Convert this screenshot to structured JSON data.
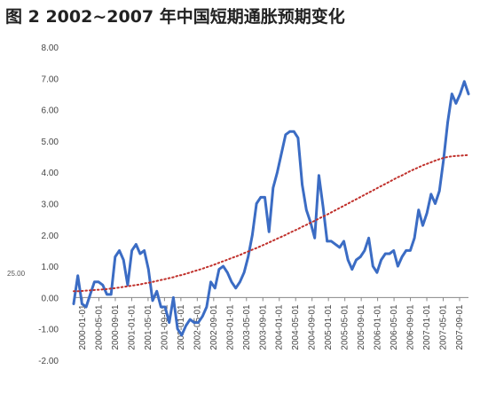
{
  "page": {
    "title": "图 2 2002~2007 年中国短期通胀预期变化",
    "stray_label": "25.00"
  },
  "chart_data": {
    "type": "line",
    "title": "图 2 2002~2007 年中国短期通胀预期变化",
    "xlabel": "",
    "ylabel": "",
    "ylim": [
      -2,
      8
    ],
    "y_ticks": [
      "8.00",
      "7.00",
      "6.00",
      "5.00",
      "4.00",
      "3.00",
      "2.00",
      "1.00",
      "0.00",
      "-1.00",
      "-2.00"
    ],
    "x_tick_labels": [
      "2000-01-01",
      "2000-05-01",
      "2000-09-01",
      "2001-01-01",
      "2001-05-01",
      "2001-09-01",
      "2002-01-01",
      "2002-05-01",
      "2002-09-01",
      "2003-01-01",
      "2003-05-01",
      "2003-09-01",
      "2004-01-01",
      "2004-05-01",
      "2004-09-01",
      "2005-01-01",
      "2005-05-01",
      "2005-09-01",
      "2006-01-01",
      "2006-05-01",
      "2006-09-01",
      "2007-01-01",
      "2007-05-01",
      "2007-09-01"
    ],
    "grid": false,
    "series": [
      {
        "style": "solid",
        "color": "#3b6cc4",
        "values": [
          -0.2,
          0.7,
          -0.2,
          -0.3,
          0.1,
          0.5,
          0.5,
          0.4,
          0.1,
          0.1,
          1.3,
          1.5,
          1.2,
          0.4,
          1.5,
          1.7,
          1.4,
          1.5,
          0.9,
          -0.1,
          0.2,
          -0.3,
          -0.3,
          -0.8,
          0.0,
          -1.0,
          -1.2,
          -0.9,
          -0.7,
          -0.8,
          -0.8,
          -0.6,
          -0.3,
          0.5,
          0.3,
          0.9,
          1.0,
          0.8,
          0.5,
          0.3,
          0.5,
          0.8,
          1.3,
          2.0,
          3.0,
          3.2,
          3.2,
          2.1,
          3.5,
          4.0,
          4.6,
          5.2,
          5.3,
          5.3,
          5.1,
          3.6,
          2.8,
          2.4,
          1.9,
          3.9,
          2.9,
          1.8,
          1.8,
          1.7,
          1.6,
          1.8,
          1.2,
          0.9,
          1.2,
          1.3,
          1.5,
          1.9,
          1.0,
          0.8,
          1.2,
          1.4,
          1.4,
          1.5,
          1.0,
          1.3,
          1.5,
          1.5,
          1.9,
          2.8,
          2.3,
          2.7,
          3.3,
          3.0,
          3.4,
          4.4,
          5.6,
          6.5,
          6.2,
          6.5,
          6.9,
          6.5
        ]
      },
      {
        "style": "dotted",
        "color": "#c0302b",
        "values": [
          0.2,
          0.2,
          0.21,
          0.22,
          0.23,
          0.24,
          0.25,
          0.26,
          0.27,
          0.29,
          0.3,
          0.32,
          0.34,
          0.36,
          0.38,
          0.4,
          0.42,
          0.45,
          0.47,
          0.5,
          0.53,
          0.56,
          0.59,
          0.62,
          0.65,
          0.69,
          0.72,
          0.76,
          0.8,
          0.84,
          0.88,
          0.92,
          0.97,
          1.01,
          1.06,
          1.11,
          1.16,
          1.21,
          1.26,
          1.31,
          1.36,
          1.42,
          1.47,
          1.53,
          1.58,
          1.64,
          1.7,
          1.76,
          1.82,
          1.88,
          1.94,
          2.0,
          2.07,
          2.13,
          2.19,
          2.26,
          2.32,
          2.39,
          2.45,
          2.52,
          2.59,
          2.65,
          2.72,
          2.79,
          2.86,
          2.93,
          3.0,
          3.07,
          3.14,
          3.21,
          3.28,
          3.35,
          3.42,
          3.49,
          3.56,
          3.63,
          3.7,
          3.77,
          3.84,
          3.9,
          3.97,
          4.04,
          4.1,
          4.16,
          4.22,
          4.27,
          4.32,
          4.37,
          4.42,
          4.46,
          4.49,
          4.51,
          4.52,
          4.53,
          4.54,
          4.55
        ]
      }
    ]
  }
}
